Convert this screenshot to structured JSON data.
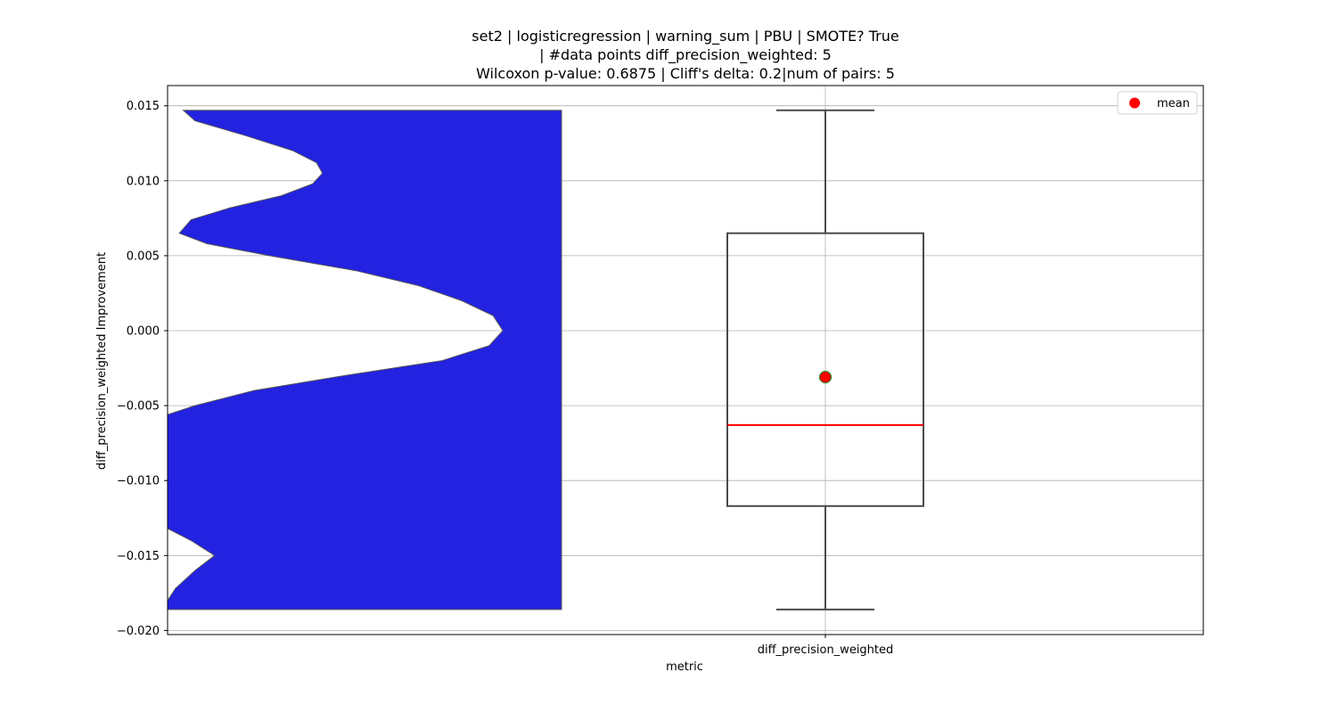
{
  "chart_data": {
    "type": "violin+box",
    "title": [
      "set2 | logisticregression | warning_sum | PBU | SMOTE? True",
      "| #data points diff_precision_weighted: 5",
      "Wilcoxon p-value: 0.6875 | Cliff's delta: 0.2|num of pairs: 5"
    ],
    "xlabel": "metric",
    "ylabel": "diff_precision_weighted Improvement",
    "categories": [
      "diff_precision_weighted"
    ],
    "ylim": [
      -0.0202,
      0.0162
    ],
    "yticks": [
      0.015,
      0.01,
      0.005,
      0.0,
      -0.005,
      -0.01,
      -0.015,
      -0.02
    ],
    "ytick_labels": [
      "0.015",
      "0.010",
      "0.005",
      "0.000",
      "−0.005",
      "−0.010",
      "−0.015",
      "−0.020"
    ],
    "grid": true,
    "legend": {
      "position": "top-right",
      "entries": [
        {
          "label": "mean",
          "marker": "circle",
          "color": "#ff0000"
        }
      ]
    },
    "box": {
      "whisker_low": -0.0186,
      "q1": -0.0117,
      "median": -0.0063,
      "q3": 0.0065,
      "whisker_high": 0.0147,
      "mean": -0.0031
    },
    "violin": {
      "color": "#2222e0",
      "ymin": -0.0186,
      "ymax": 0.0147,
      "density_profile": [
        [
          0.0147,
          0.04
        ],
        [
          0.014,
          0.07
        ],
        [
          0.013,
          0.2
        ],
        [
          0.012,
          0.32
        ],
        [
          0.0112,
          0.38
        ],
        [
          0.0105,
          0.395
        ],
        [
          0.0098,
          0.37
        ],
        [
          0.009,
          0.29
        ],
        [
          0.0082,
          0.16
        ],
        [
          0.0074,
          0.06
        ],
        [
          0.0065,
          0.03
        ],
        [
          0.0058,
          0.1
        ],
        [
          0.005,
          0.26
        ],
        [
          0.004,
          0.48
        ],
        [
          0.003,
          0.64
        ],
        [
          0.002,
          0.75
        ],
        [
          0.001,
          0.83
        ],
        [
          0.0,
          0.855
        ],
        [
          -0.001,
          0.82
        ],
        [
          -0.002,
          0.7
        ],
        [
          -0.003,
          0.45
        ],
        [
          -0.004,
          0.22
        ],
        [
          -0.005,
          0.07
        ],
        [
          -0.0056,
          0.0
        ],
        [
          -0.0132,
          0.0
        ],
        [
          -0.014,
          0.06
        ],
        [
          -0.015,
          0.12
        ],
        [
          -0.016,
          0.07
        ],
        [
          -0.0172,
          0.02
        ],
        [
          -0.018,
          0.0
        ],
        [
          -0.0186,
          0.0
        ]
      ]
    },
    "colors": {
      "box_edge": "#4a4a4a",
      "median": "#ff0000",
      "mean_fill": "#ff0000",
      "mean_edge": "#2e8b2e",
      "grid": "#b0b0b0"
    }
  }
}
